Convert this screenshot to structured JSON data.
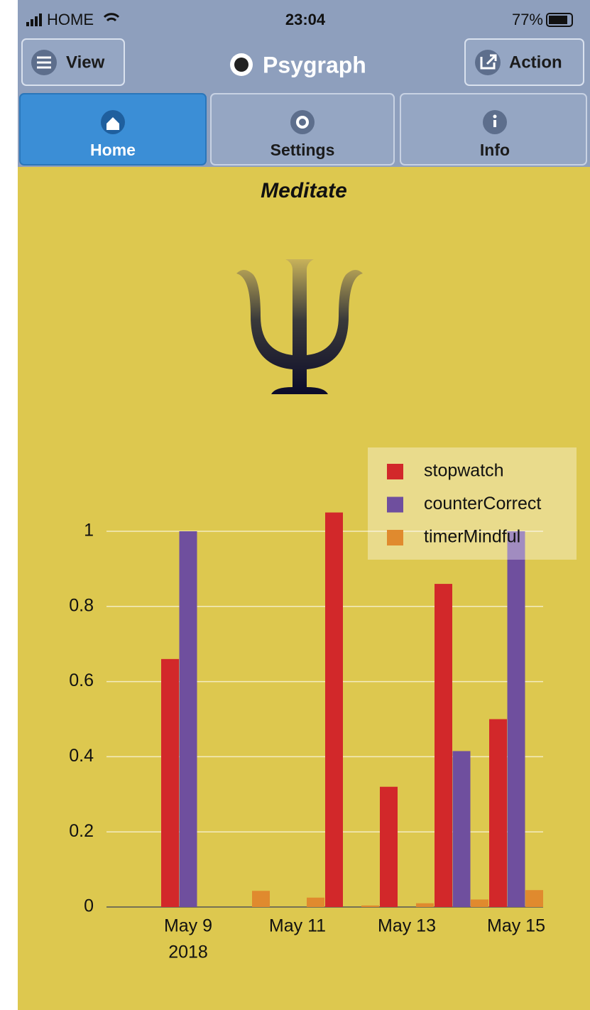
{
  "status_bar": {
    "carrier": "HOME",
    "time": "23:04",
    "battery": "77%"
  },
  "header": {
    "left_button": "View",
    "title": "Psygraph",
    "right_button": "Action"
  },
  "tabs": [
    "Home",
    "Settings",
    "Info"
  ],
  "page_title": "Meditate",
  "chart_data": {
    "type": "bar",
    "categories": [
      "May 9",
      null,
      "May 11",
      null,
      "May 13",
      null,
      "May 15"
    ],
    "year_label": "2018",
    "series": [
      {
        "name": "stopwatch",
        "color": "#d2282a",
        "values": [
          0.66,
          0,
          0,
          1.05,
          0.32,
          0.86,
          0.5
        ]
      },
      {
        "name": "counterCorrect",
        "color": "#6f4f9e",
        "values": [
          1.0,
          0,
          0,
          0,
          0,
          0.415,
          1.0
        ]
      },
      {
        "name": "timerMindful",
        "color": "#e08a2e",
        "values": [
          0,
          0.043,
          0.025,
          0.004,
          0.01,
          0.02,
          0.045
        ]
      }
    ],
    "ylim": [
      0,
      1.1
    ],
    "yticks": [
      0,
      0.2,
      0.4,
      0.6,
      0.8,
      1
    ],
    "grid": true,
    "legend": "top-right"
  }
}
